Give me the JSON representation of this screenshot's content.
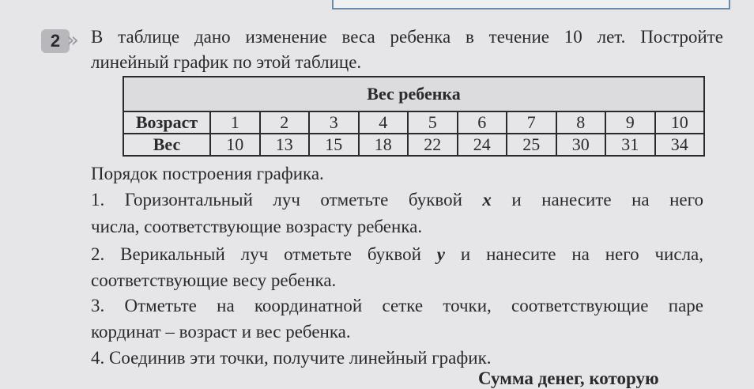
{
  "task": {
    "number": "2",
    "line1": "В таблице дано изменение веса ребенка в течение 10 лет. Постройте",
    "line2": "линейный график по этой таблице."
  },
  "table": {
    "title": "Вес ребенка",
    "rows": [
      [
        "Возраст",
        1,
        2,
        3,
        4,
        5,
        6,
        7,
        8,
        9,
        10
      ],
      [
        "Вес",
        10,
        13,
        15,
        18,
        22,
        24,
        25,
        30,
        31,
        34
      ]
    ]
  },
  "procedure": {
    "heading": "Порядок построения графика.",
    "items": [
      {
        "line1_start": "1. Горизонтальный луч отметьте буквой ",
        "variable": "x",
        "line1_end": " и нанесите на него",
        "line2": "числа, соответствующие возрасту ребенка."
      },
      {
        "line1_start": "2. Верикальный луч отметьте буквой ",
        "variable": "y",
        "line1_end": " и нанесите на него числа,",
        "line2": "соответствующие весу ребенка."
      },
      {
        "line1": "3. Отметьте на координатной сетке точки, соответствующие паре",
        "line2": "кординат – возраст и вес ребенка."
      },
      {
        "line1": "4. Соединив эти точки, получите линейный график."
      }
    ]
  },
  "footer_fragment": "Сумма денег, которую"
}
